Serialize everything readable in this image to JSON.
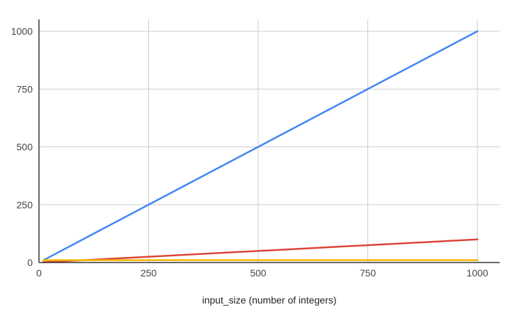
{
  "chart_data": {
    "type": "line",
    "title": "",
    "xlabel": "input_size (number of integers)",
    "ylabel": "",
    "xlim": [
      0,
      1000
    ],
    "ylim": [
      0,
      1000
    ],
    "x_ticks": [
      0,
      250,
      500,
      750,
      1000
    ],
    "y_ticks": [
      0,
      250,
      500,
      750,
      1000
    ],
    "grid": true,
    "legend": "none",
    "series": [
      {
        "color": "#4285f4",
        "x": [
          10,
          1000
        ],
        "y": [
          10,
          1000
        ]
      },
      {
        "color": "#db4437",
        "x": [
          10,
          1000
        ],
        "y": [
          1,
          100
        ]
      },
      {
        "color": "#f4b400",
        "x": [
          10,
          1000
        ],
        "y": [
          10,
          10
        ]
      }
    ]
  }
}
